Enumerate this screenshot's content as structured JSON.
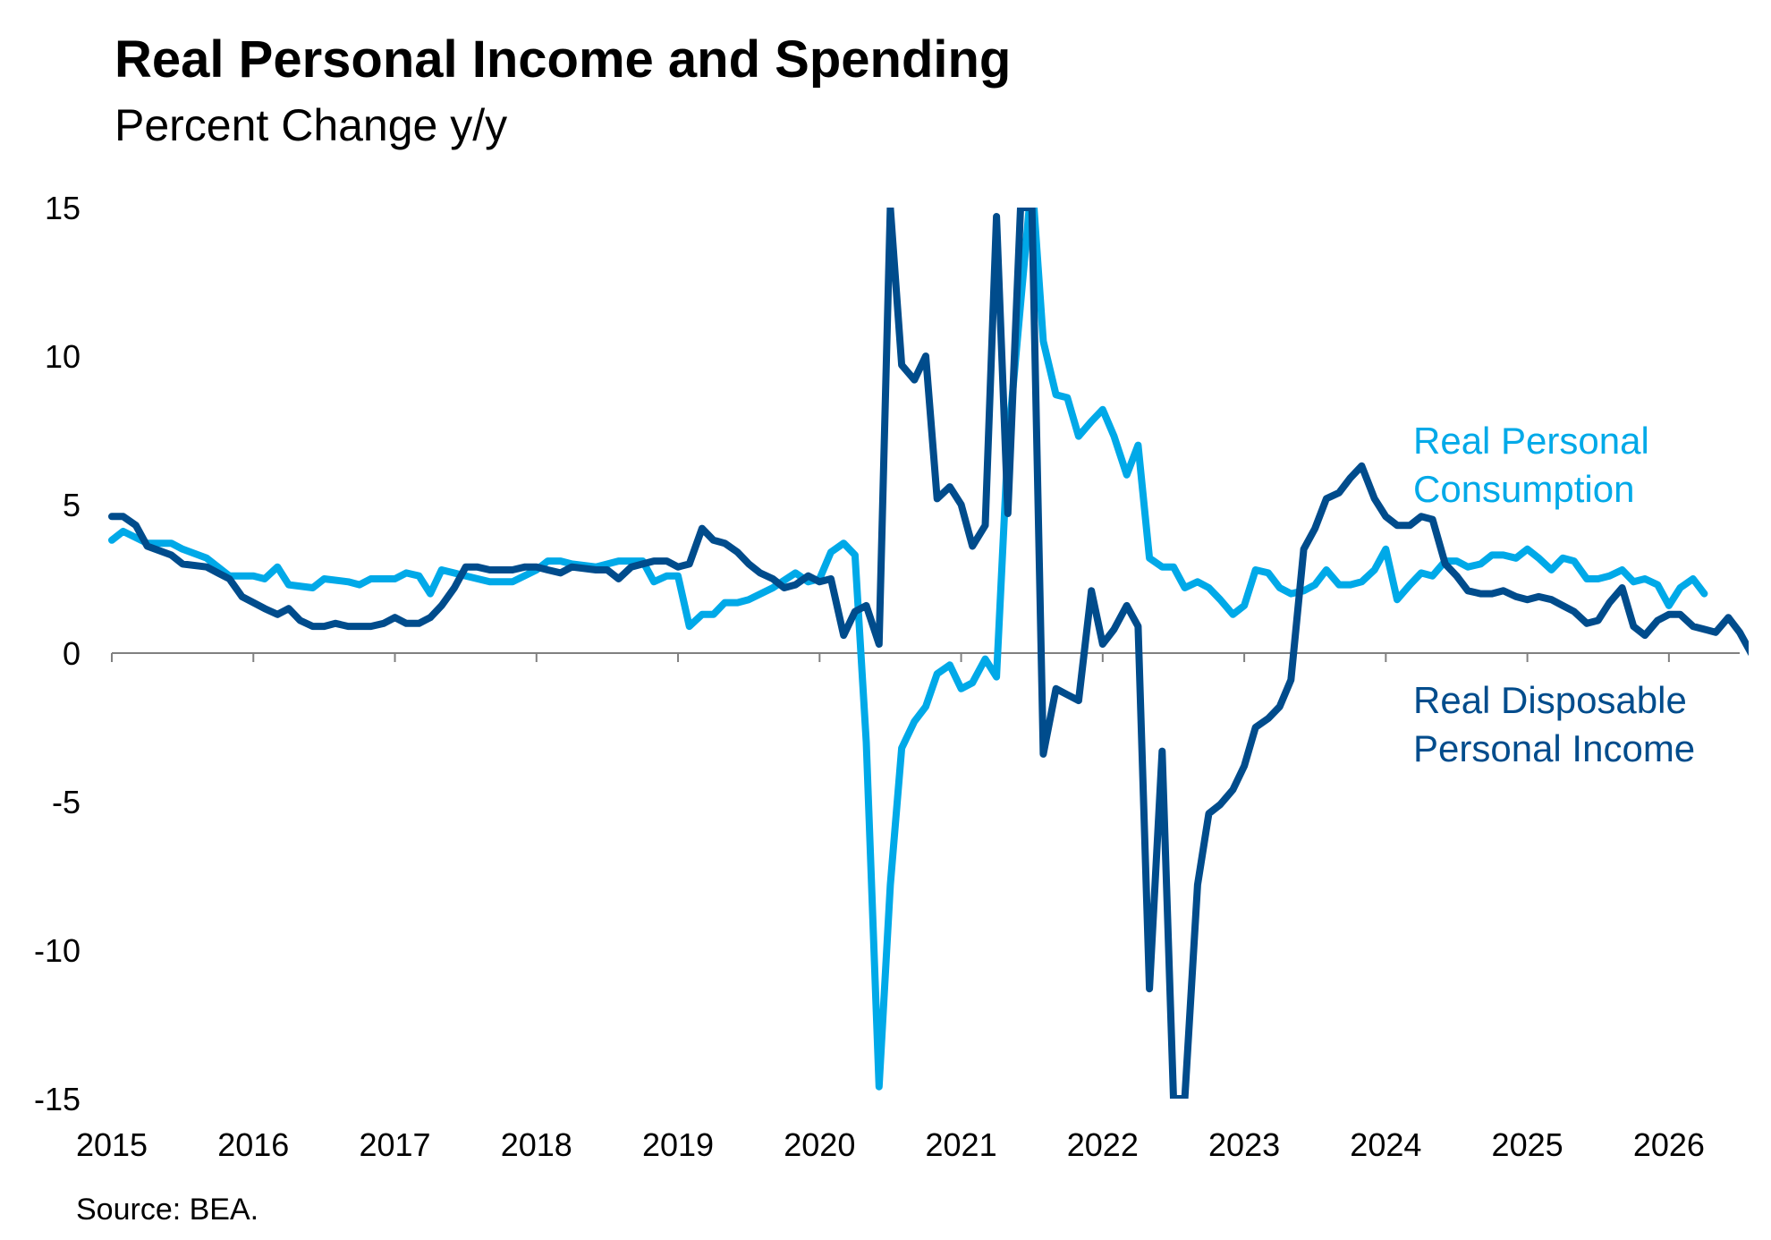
{
  "title": "Real Personal Income and Spending",
  "subtitle": "Percent Change y/y",
  "source": "Source: BEA.",
  "colors": {
    "consumption": "#00a9e8",
    "income": "#004c8c",
    "axis": "#808080"
  },
  "chart_data": {
    "type": "line",
    "xlim": [
      2015,
      2026.5
    ],
    "ylim": [
      -15,
      15
    ],
    "grid": false,
    "yticks": [
      "15",
      "10",
      "5",
      "0",
      "-5",
      "-10",
      "-15"
    ],
    "xticks": [
      "2015",
      "2016",
      "2017",
      "2018",
      "2019",
      "2020",
      "2021",
      "2022",
      "2023",
      "2024",
      "2025",
      "2026"
    ],
    "series": [
      {
        "name": "Real Personal Consumption",
        "label_lines": [
          "Real Personal",
          "Consumption"
        ],
        "points": [
          [
            2015.0,
            3.8
          ],
          [
            2015.08,
            4.1
          ],
          [
            2015.25,
            3.7
          ],
          [
            2015.42,
            3.7
          ],
          [
            2015.5,
            3.5
          ],
          [
            2015.67,
            3.2
          ],
          [
            2015.83,
            2.6
          ],
          [
            2016.0,
            2.6
          ],
          [
            2016.08,
            2.5
          ],
          [
            2016.17,
            2.9
          ],
          [
            2016.25,
            2.3
          ],
          [
            2016.42,
            2.2
          ],
          [
            2016.5,
            2.5
          ],
          [
            2016.67,
            2.4
          ],
          [
            2016.75,
            2.3
          ],
          [
            2016.83,
            2.5
          ],
          [
            2016.92,
            2.5
          ],
          [
            2017.0,
            2.5
          ],
          [
            2017.08,
            2.7
          ],
          [
            2017.17,
            2.6
          ],
          [
            2017.25,
            2.0
          ],
          [
            2017.33,
            2.8
          ],
          [
            2017.5,
            2.6
          ],
          [
            2017.67,
            2.4
          ],
          [
            2017.83,
            2.4
          ],
          [
            2018.0,
            2.8
          ],
          [
            2018.08,
            3.1
          ],
          [
            2018.17,
            3.1
          ],
          [
            2018.25,
            3.0
          ],
          [
            2018.42,
            2.9
          ],
          [
            2018.58,
            3.1
          ],
          [
            2018.75,
            3.1
          ],
          [
            2018.83,
            2.4
          ],
          [
            2018.92,
            2.6
          ],
          [
            2019.0,
            2.6
          ],
          [
            2019.08,
            0.9
          ],
          [
            2019.17,
            1.3
          ],
          [
            2019.25,
            1.3
          ],
          [
            2019.33,
            1.7
          ],
          [
            2019.42,
            1.7
          ],
          [
            2019.5,
            1.8
          ],
          [
            2019.67,
            2.2
          ],
          [
            2019.83,
            2.7
          ],
          [
            2019.92,
            2.4
          ],
          [
            2020.0,
            2.5
          ],
          [
            2020.08,
            3.4
          ],
          [
            2020.17,
            3.7
          ],
          [
            2020.25,
            3.3
          ],
          [
            2020.33,
            -3.0
          ],
          [
            2020.42,
            -14.6
          ],
          [
            2020.5,
            -7.8
          ],
          [
            2020.58,
            -3.2
          ],
          [
            2020.67,
            -2.3
          ],
          [
            2020.75,
            -1.8
          ],
          [
            2020.83,
            -0.7
          ],
          [
            2020.92,
            -0.4
          ],
          [
            2021.0,
            -1.2
          ],
          [
            2021.08,
            -1.0
          ],
          [
            2021.17,
            -0.2
          ],
          [
            2021.25,
            -0.8
          ],
          [
            2021.33,
            7.0
          ],
          [
            2021.5,
            16.0
          ],
          [
            2021.58,
            10.5
          ],
          [
            2021.67,
            8.7
          ],
          [
            2021.75,
            8.6
          ],
          [
            2021.83,
            7.3
          ],
          [
            2021.92,
            7.8
          ],
          [
            2022.0,
            8.2
          ],
          [
            2022.08,
            7.3
          ],
          [
            2022.17,
            6.0
          ],
          [
            2022.25,
            7.0
          ],
          [
            2022.33,
            3.2
          ],
          [
            2022.42,
            2.9
          ],
          [
            2022.5,
            2.9
          ],
          [
            2022.58,
            2.2
          ],
          [
            2022.67,
            2.4
          ],
          [
            2022.75,
            2.2
          ],
          [
            2022.83,
            1.8
          ],
          [
            2022.92,
            1.3
          ],
          [
            2023.0,
            1.6
          ],
          [
            2023.08,
            2.8
          ],
          [
            2023.17,
            2.7
          ],
          [
            2023.25,
            2.2
          ],
          [
            2023.33,
            2.0
          ],
          [
            2023.42,
            2.1
          ],
          [
            2023.5,
            2.3
          ],
          [
            2023.58,
            2.8
          ],
          [
            2023.67,
            2.3
          ],
          [
            2023.75,
            2.3
          ],
          [
            2023.83,
            2.4
          ],
          [
            2023.92,
            2.8
          ],
          [
            2024.0,
            3.5
          ],
          [
            2024.08,
            1.8
          ],
          [
            2024.17,
            2.3
          ],
          [
            2024.25,
            2.7
          ],
          [
            2024.33,
            2.6
          ],
          [
            2024.42,
            3.1
          ],
          [
            2024.5,
            3.1
          ],
          [
            2024.58,
            2.9
          ],
          [
            2024.67,
            3.0
          ],
          [
            2024.75,
            3.3
          ],
          [
            2024.83,
            3.3
          ],
          [
            2024.92,
            3.2
          ],
          [
            2025.0,
            3.5
          ],
          [
            2025.08,
            3.2
          ],
          [
            2025.17,
            2.8
          ],
          [
            2025.25,
            3.2
          ],
          [
            2025.33,
            3.1
          ],
          [
            2025.42,
            2.5
          ],
          [
            2025.5,
            2.5
          ],
          [
            2025.58,
            2.6
          ],
          [
            2025.67,
            2.8
          ],
          [
            2025.75,
            2.4
          ],
          [
            2025.83,
            2.5
          ],
          [
            2025.92,
            2.3
          ],
          [
            2026.0,
            1.6
          ],
          [
            2026.08,
            2.2
          ],
          [
            2026.17,
            2.5
          ],
          [
            2026.25,
            2.0
          ]
        ]
      },
      {
        "name": "Real Disposable Personal Income",
        "label_lines": [
          "Real Disposable",
          "Personal Income"
        ],
        "points": [
          [
            2015.0,
            4.6
          ],
          [
            2015.08,
            4.6
          ],
          [
            2015.17,
            4.3
          ],
          [
            2015.25,
            3.6
          ],
          [
            2015.42,
            3.3
          ],
          [
            2015.5,
            3.0
          ],
          [
            2015.67,
            2.9
          ],
          [
            2015.75,
            2.7
          ],
          [
            2015.83,
            2.5
          ],
          [
            2015.92,
            1.9
          ],
          [
            2016.0,
            1.7
          ],
          [
            2016.08,
            1.5
          ],
          [
            2016.17,
            1.3
          ],
          [
            2016.25,
            1.5
          ],
          [
            2016.33,
            1.1
          ],
          [
            2016.42,
            0.9
          ],
          [
            2016.5,
            0.9
          ],
          [
            2016.58,
            1.0
          ],
          [
            2016.67,
            0.9
          ],
          [
            2016.83,
            0.9
          ],
          [
            2016.92,
            1.0
          ],
          [
            2017.0,
            1.2
          ],
          [
            2017.08,
            1.0
          ],
          [
            2017.17,
            1.0
          ],
          [
            2017.25,
            1.2
          ],
          [
            2017.33,
            1.6
          ],
          [
            2017.42,
            2.2
          ],
          [
            2017.5,
            2.9
          ],
          [
            2017.58,
            2.9
          ],
          [
            2017.67,
            2.8
          ],
          [
            2017.75,
            2.8
          ],
          [
            2017.83,
            2.8
          ],
          [
            2017.92,
            2.9
          ],
          [
            2018.0,
            2.9
          ],
          [
            2018.08,
            2.8
          ],
          [
            2018.17,
            2.7
          ],
          [
            2018.25,
            2.9
          ],
          [
            2018.42,
            2.8
          ],
          [
            2018.5,
            2.8
          ],
          [
            2018.58,
            2.5
          ],
          [
            2018.67,
            2.9
          ],
          [
            2018.75,
            3.0
          ],
          [
            2018.83,
            3.1
          ],
          [
            2018.92,
            3.1
          ],
          [
            2019.0,
            2.9
          ],
          [
            2019.08,
            3.0
          ],
          [
            2019.17,
            4.2
          ],
          [
            2019.25,
            3.8
          ],
          [
            2019.33,
            3.7
          ],
          [
            2019.42,
            3.4
          ],
          [
            2019.5,
            3.0
          ],
          [
            2019.58,
            2.7
          ],
          [
            2019.67,
            2.5
          ],
          [
            2019.75,
            2.2
          ],
          [
            2019.83,
            2.3
          ],
          [
            2019.92,
            2.6
          ],
          [
            2020.0,
            2.4
          ],
          [
            2020.08,
            2.5
          ],
          [
            2020.17,
            0.6
          ],
          [
            2020.25,
            1.4
          ],
          [
            2020.33,
            1.6
          ],
          [
            2020.42,
            0.3
          ],
          [
            2020.5,
            15.0
          ],
          [
            2020.58,
            9.7
          ],
          [
            2020.67,
            9.2
          ],
          [
            2020.75,
            10.0
          ],
          [
            2020.83,
            5.2
          ],
          [
            2020.92,
            5.6
          ],
          [
            2021.0,
            5.0
          ],
          [
            2021.08,
            3.6
          ],
          [
            2021.17,
            4.3
          ],
          [
            2021.25,
            14.7
          ],
          [
            2021.33,
            4.7
          ],
          [
            2021.42,
            15.0
          ],
          [
            2021.5,
            15.0
          ],
          [
            2021.58,
            -3.4
          ],
          [
            2021.67,
            -1.2
          ],
          [
            2021.75,
            -1.4
          ],
          [
            2021.83,
            -1.6
          ],
          [
            2021.92,
            2.1
          ],
          [
            2022.0,
            0.3
          ],
          [
            2022.08,
            0.8
          ],
          [
            2022.17,
            1.6
          ],
          [
            2022.25,
            0.9
          ],
          [
            2022.33,
            -11.3
          ],
          [
            2022.42,
            -3.3
          ],
          [
            2022.5,
            -15.0
          ],
          [
            2022.58,
            -15.0
          ],
          [
            2022.67,
            -7.8
          ],
          [
            2022.75,
            -5.4
          ],
          [
            2022.83,
            -5.1
          ],
          [
            2022.92,
            -4.6
          ],
          [
            2023.0,
            -3.8
          ],
          [
            2023.08,
            -2.5
          ],
          [
            2023.17,
            -2.2
          ],
          [
            2023.25,
            -1.8
          ],
          [
            2023.33,
            -0.9
          ],
          [
            2023.42,
            3.5
          ],
          [
            2023.5,
            4.2
          ],
          [
            2023.58,
            5.2
          ],
          [
            2023.67,
            5.4
          ],
          [
            2023.75,
            5.9
          ],
          [
            2023.83,
            6.3
          ],
          [
            2023.92,
            5.2
          ],
          [
            2024.0,
            4.6
          ],
          [
            2024.08,
            4.3
          ],
          [
            2024.17,
            4.3
          ],
          [
            2024.25,
            4.6
          ],
          [
            2024.33,
            4.5
          ],
          [
            2024.42,
            3.0
          ],
          [
            2024.5,
            2.6
          ],
          [
            2024.58,
            2.1
          ],
          [
            2024.67,
            2.0
          ],
          [
            2024.75,
            2.0
          ],
          [
            2024.83,
            2.1
          ],
          [
            2024.92,
            1.9
          ],
          [
            2025.0,
            1.8
          ],
          [
            2025.08,
            1.9
          ],
          [
            2025.17,
            1.8
          ],
          [
            2025.25,
            1.6
          ],
          [
            2025.33,
            1.4
          ],
          [
            2025.42,
            1.0
          ],
          [
            2025.5,
            1.1
          ],
          [
            2025.58,
            1.7
          ],
          [
            2025.67,
            2.2
          ],
          [
            2025.75,
            0.9
          ],
          [
            2025.83,
            0.6
          ],
          [
            2025.92,
            1.1
          ],
          [
            2026.0,
            1.3
          ],
          [
            2026.08,
            1.3
          ],
          [
            2026.17,
            0.9
          ],
          [
            2026.25,
            0.8
          ],
          [
            2026.33,
            0.7
          ],
          [
            2026.42,
            1.2
          ],
          [
            2026.5,
            0.7
          ],
          [
            2026.58,
            0.0
          ]
        ]
      }
    ]
  }
}
